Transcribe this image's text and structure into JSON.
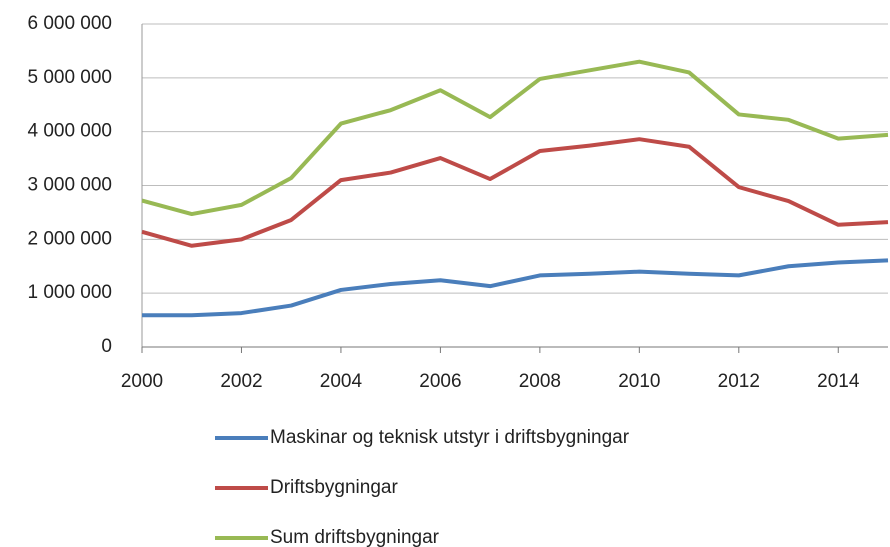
{
  "chart_data": {
    "type": "line",
    "x": [
      2000,
      2001,
      2002,
      2003,
      2004,
      2005,
      2006,
      2007,
      2008,
      2009,
      2010,
      2011,
      2012,
      2013,
      2014,
      2015
    ],
    "series": [
      {
        "name": "Maskinar og teknisk utstyr i driftsbygningar",
        "color": "#4a7ebb",
        "values": [
          590000,
          590000,
          630000,
          770000,
          1060000,
          1170000,
          1240000,
          1130000,
          1330000,
          1360000,
          1400000,
          1360000,
          1330000,
          1500000,
          1570000,
          1610000
        ]
      },
      {
        "name": "Driftsbygningar",
        "color": "#be4b48",
        "values": [
          2140000,
          1880000,
          2000000,
          2360000,
          3100000,
          3240000,
          3510000,
          3120000,
          3640000,
          3740000,
          3860000,
          3720000,
          2970000,
          2710000,
          2270000,
          2320000
        ]
      },
      {
        "name": "Sum driftsbygningar",
        "color": "#98b954",
        "values": [
          2720000,
          2470000,
          2640000,
          3140000,
          4150000,
          4400000,
          4770000,
          4270000,
          4980000,
          5140000,
          5300000,
          5100000,
          4320000,
          4220000,
          3870000,
          3940000
        ]
      }
    ],
    "xlim": [
      2000,
      2015
    ],
    "xticks": [
      2000,
      2002,
      2004,
      2006,
      2008,
      2010,
      2012,
      2014
    ],
    "ylim": [
      0,
      6000000
    ],
    "yticks": [
      0,
      {
        "value": 1000000,
        "label": "1 000 000"
      },
      {
        "value": 2000000,
        "label": "2 000 000"
      },
      {
        "value": 3000000,
        "label": "3 000 000"
      },
      {
        "value": 4000000,
        "label": "4 000 000"
      },
      {
        "value": 5000000,
        "label": "5 000 000"
      },
      {
        "value": 6000000,
        "label": "6 000 000"
      }
    ],
    "grid": true,
    "legend": "bottom"
  }
}
